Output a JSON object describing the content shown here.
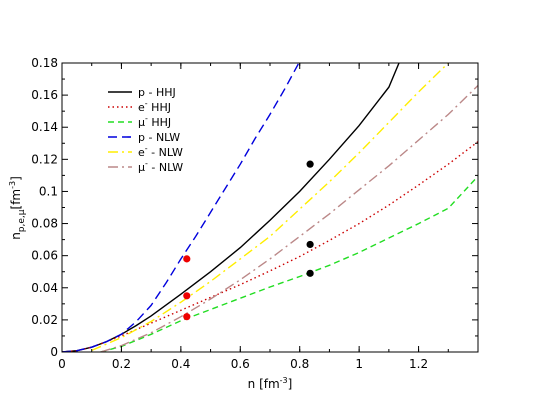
{
  "chart_data": {
    "type": "line",
    "xlabel": "n [fm",
    "xlabel_sup": "-3",
    "xlabel_end": "]",
    "ylabel": "n",
    "ylabel_sub": "p,e,μ",
    "ylabel_unit": "[fm",
    "ylabel_sup": "-3",
    "ylabel_end": "]",
    "xlim": [
      0,
      1.4
    ],
    "ylim": [
      0,
      0.18
    ],
    "x_ticks": [
      0,
      0.2,
      0.4,
      0.6,
      0.8,
      1,
      1.2
    ],
    "x_tick_labels": [
      "0",
      "0.2",
      "0.4",
      "0.6",
      "0.8",
      "1",
      "1.2"
    ],
    "y_ticks": [
      0,
      0.02,
      0.04,
      0.06,
      0.08,
      0.1,
      0.12,
      0.14,
      0.16,
      0.18
    ],
    "y_tick_labels": [
      "0",
      "0.02",
      "0.04",
      "0.06",
      "0.08",
      "0.1",
      "0.12",
      "0.14",
      "0.16",
      "0.18"
    ],
    "grid": false,
    "legend_position": "top-left",
    "series": [
      {
        "name": "p  - HHJ",
        "color": "#000000",
        "dash": "solid",
        "x": [
          0,
          0.05,
          0.1,
          0.15,
          0.2,
          0.25,
          0.3,
          0.4,
          0.5,
          0.6,
          0.7,
          0.8,
          0.9,
          1.0,
          1.1,
          1.134
        ],
        "y": [
          0,
          0.0008,
          0.003,
          0.0065,
          0.011,
          0.0165,
          0.0225,
          0.036,
          0.05,
          0.065,
          0.082,
          0.1,
          0.12,
          0.141,
          0.165,
          0.18
        ]
      },
      {
        "name": "e  HHJ",
        "name_sup": "-",
        "color": "#cc0000",
        "dash": "dotted",
        "x": [
          0,
          0.05,
          0.1,
          0.15,
          0.2,
          0.25,
          0.3,
          0.4,
          0.5,
          0.6,
          0.7,
          0.8,
          0.9,
          1.0,
          1.1,
          1.2,
          1.3,
          1.4
        ],
        "y": [
          0,
          0.0008,
          0.003,
          0.0065,
          0.01,
          0.014,
          0.018,
          0.026,
          0.034,
          0.042,
          0.0505,
          0.0595,
          0.0695,
          0.08,
          0.0915,
          0.104,
          0.117,
          0.131
        ]
      },
      {
        "name": "μ  HHJ",
        "name_sup": "-",
        "color": "#22dd22",
        "dash": "dashed",
        "x": [
          0.13,
          0.2,
          0.3,
          0.4,
          0.5,
          0.6,
          0.7,
          0.8,
          0.9,
          1.0,
          1.1,
          1.2,
          1.3,
          1.4
        ],
        "y": [
          0,
          0.0035,
          0.011,
          0.0195,
          0.0265,
          0.0335,
          0.0405,
          0.047,
          0.054,
          0.062,
          0.071,
          0.08,
          0.0895,
          0.1095
        ]
      },
      {
        "name": "p - NLW",
        "color": "#0000dd",
        "dash": "longdash",
        "x": [
          0,
          0.05,
          0.1,
          0.15,
          0.2,
          0.25,
          0.3,
          0.35,
          0.4,
          0.45,
          0.5,
          0.55,
          0.6,
          0.65,
          0.7,
          0.75,
          0.8
        ],
        "y": [
          0,
          0.0008,
          0.003,
          0.0065,
          0.011,
          0.019,
          0.029,
          0.043,
          0.058,
          0.072,
          0.087,
          0.102,
          0.117,
          0.133,
          0.148,
          0.164,
          0.181
        ]
      },
      {
        "name": "e  - NLW",
        "name_sup": "-",
        "color": "#ffee00",
        "dash": "dashdot",
        "x": [
          0.1,
          0.2,
          0.3,
          0.4,
          0.5,
          0.6,
          0.7,
          0.8,
          0.9,
          1.0,
          1.1,
          1.2,
          1.3
        ],
        "y": [
          0.001,
          0.009,
          0.019,
          0.031,
          0.044,
          0.058,
          0.072,
          0.089,
          0.106,
          0.124,
          0.143,
          0.162,
          0.18
        ]
      },
      {
        "name": "μ  -  NLW",
        "name_sup": "-",
        "color": "#bb8888",
        "dash": "dashdot",
        "x": [
          0.13,
          0.2,
          0.3,
          0.4,
          0.5,
          0.6,
          0.7,
          0.8,
          0.9,
          1.0,
          1.1,
          1.2,
          1.3,
          1.4
        ],
        "y": [
          0,
          0.004,
          0.012,
          0.022,
          0.033,
          0.045,
          0.058,
          0.072,
          0.086,
          0.101,
          0.116,
          0.132,
          0.148,
          0.166
        ]
      }
    ],
    "markers": [
      {
        "x": 0.42,
        "y": 0.058,
        "color": "#ee0000"
      },
      {
        "x": 0.42,
        "y": 0.035,
        "color": "#ee0000"
      },
      {
        "x": 0.42,
        "y": 0.022,
        "color": "#ee0000"
      },
      {
        "x": 0.835,
        "y": 0.117,
        "color": "#000000"
      },
      {
        "x": 0.835,
        "y": 0.067,
        "color": "#000000"
      },
      {
        "x": 0.835,
        "y": 0.049,
        "color": "#000000"
      }
    ]
  }
}
